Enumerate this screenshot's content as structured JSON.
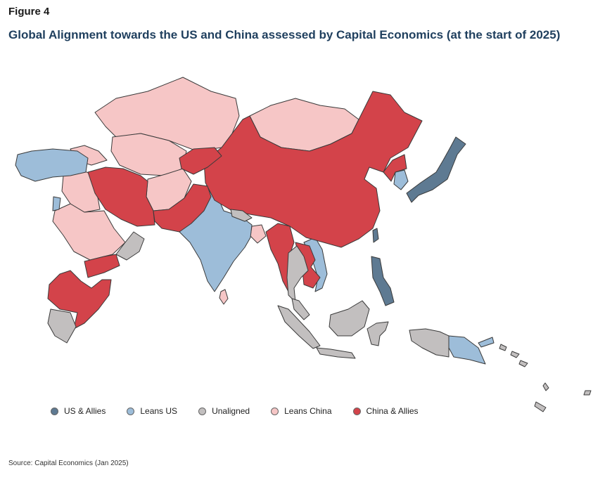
{
  "figure_label": "Figure 4",
  "title": "Global Alignment towards the US and China assessed by Capital Economics (at the start of 2025)",
  "source": "Source: Capital Economics (Jan 2025)",
  "colors": {
    "us_allies": "#5e7a92",
    "leans_us": "#9dbdd9",
    "unaligned": "#c2bfbf",
    "leans_china": "#f6c6c6",
    "china_allies": "#d3434a"
  },
  "legend": [
    {
      "label": "US & Allies",
      "category": "us_allies"
    },
    {
      "label": "Leans US",
      "category": "leans_us"
    },
    {
      "label": "Unaligned",
      "category": "unaligned"
    },
    {
      "label": "Leans China",
      "category": "leans_china"
    },
    {
      "label": "China & Allies",
      "category": "china_allies"
    }
  ]
}
